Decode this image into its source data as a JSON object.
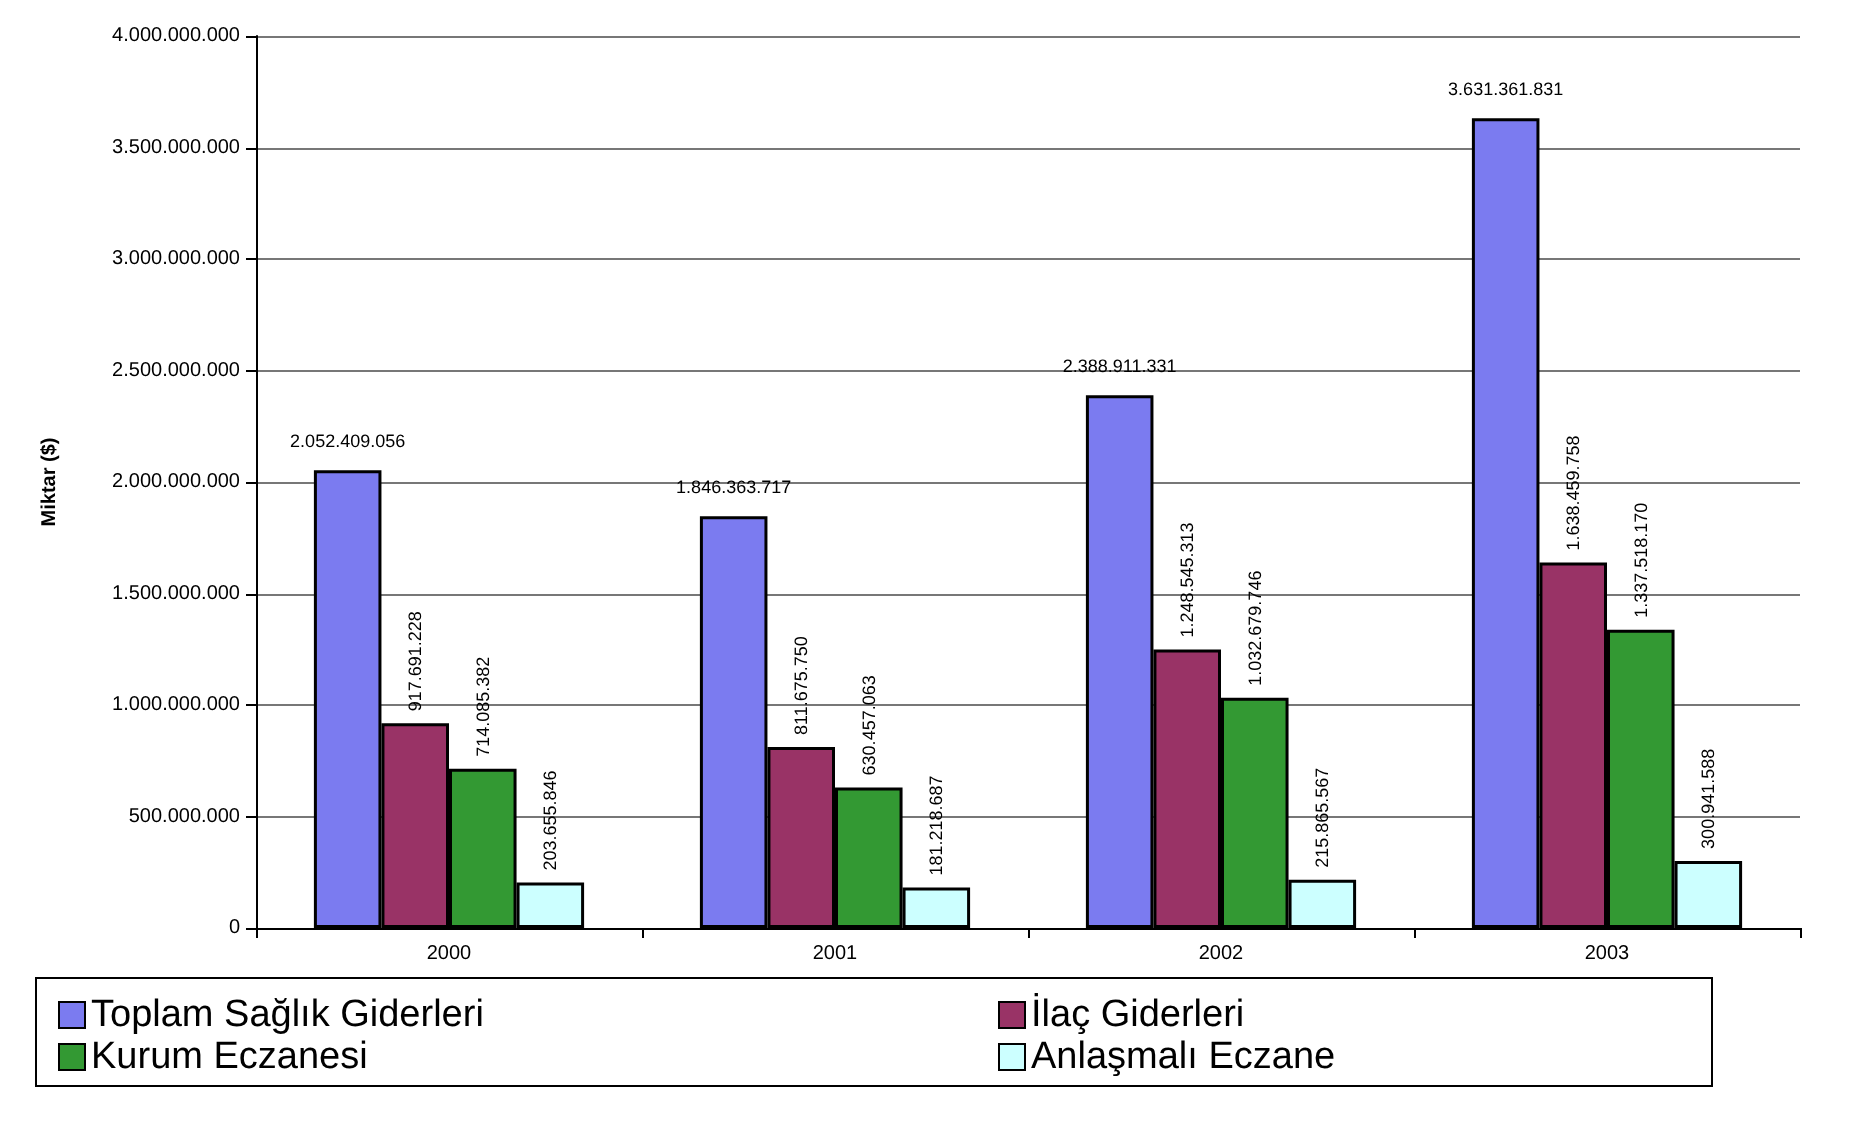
{
  "chart_data": {
    "type": "bar",
    "ylabel": "Miktar ($)",
    "categories": [
      "2000",
      "2001",
      "2002",
      "2003"
    ],
    "series": [
      {
        "name": "Toplam Sağlık Giderleri",
        "color": "#7b7bf0",
        "values": [
          2052409056,
          1846363717,
          2388911331,
          3631361831
        ],
        "value_labels": [
          "2.052.409.056",
          "1.846.363.717",
          "2.388.911.331",
          "3.631.361.831"
        ]
      },
      {
        "name": "İlaç Giderleri",
        "color": "#993366",
        "values": [
          917691228,
          811675750,
          1248545313,
          1638459758
        ],
        "value_labels": [
          "917.691.228",
          "811.675.750",
          "1.248.545.313",
          "1.638.459.758"
        ]
      },
      {
        "name": "Kurum Eczanesi",
        "color": "#339933",
        "values": [
          714085382,
          630457063,
          1032679746,
          1337518170
        ],
        "value_labels": [
          "714.085.382",
          "630.457.063",
          "1.032.679.746",
          "1.337.518.170"
        ]
      },
      {
        "name": "Anlaşmalı Eczane",
        "color": "#ccffff",
        "values": [
          203655846,
          181218687,
          215865567,
          300941588
        ],
        "value_labels": [
          "203.655.846",
          "181.218.687",
          "215.865.567",
          "300.941.588"
        ]
      }
    ],
    "ylim": [
      0,
      4000000000
    ],
    "yticks": [
      0,
      {
        "value": 500000000,
        "label": "500.000.000"
      },
      {
        "value": 1000000000,
        "label": "1.000.000.000"
      },
      {
        "value": 1500000000,
        "label": "1.500.000.000"
      },
      {
        "value": 2000000000,
        "label": "2.000.000.000"
      },
      {
        "value": 2500000000,
        "label": "2.500.000.000"
      },
      {
        "value": 3000000000,
        "label": "3.000.000.000"
      },
      {
        "value": 3500000000,
        "label": "3.500.000.000"
      },
      {
        "value": 4000000000,
        "label": "4.000.000.000"
      }
    ],
    "grid": "y",
    "legend": "bottom"
  }
}
